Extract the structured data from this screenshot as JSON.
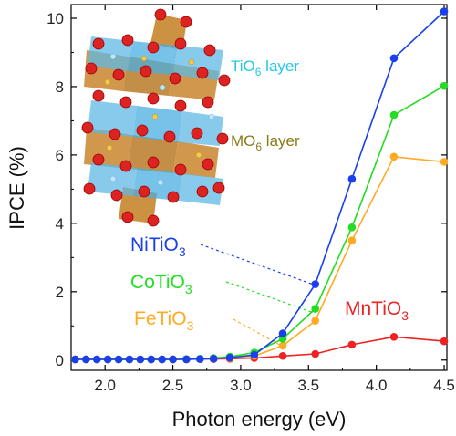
{
  "chart_data": {
    "type": "line",
    "xlabel": "Photon energy (eV)",
    "ylabel": "IPCE (%)",
    "xlim": [
      1.75,
      4.52
    ],
    "ylim": [
      -0.3,
      10.4
    ],
    "x_ticks": [
      "2.0",
      "2.5",
      "3.0",
      "3.5",
      "4.0",
      "4.5"
    ],
    "y_ticks": [
      "0",
      "2",
      "4",
      "6",
      "8",
      "10"
    ],
    "grid": false,
    "series": [
      {
        "name_main": "MnTiO",
        "name_sub": "3",
        "color": "#ee2222",
        "x": [
          1.78,
          1.86,
          1.94,
          2.02,
          2.1,
          2.18,
          2.26,
          2.34,
          2.42,
          2.5,
          2.6,
          2.7,
          2.8,
          2.92,
          3.1,
          3.31,
          3.55,
          3.82,
          4.13,
          4.5
        ],
        "y": [
          0.02,
          0.02,
          0.02,
          0.02,
          0.02,
          0.02,
          0.02,
          0.02,
          0.02,
          0.02,
          0.02,
          0.03,
          0.03,
          0.04,
          0.06,
          0.12,
          0.18,
          0.45,
          0.68,
          0.55
        ]
      },
      {
        "name_main": "FeTiO",
        "name_sub": "3",
        "color": "#ffaa22",
        "x": [
          1.78,
          1.86,
          1.94,
          2.02,
          2.1,
          2.18,
          2.26,
          2.34,
          2.42,
          2.5,
          2.6,
          2.7,
          2.8,
          2.92,
          3.1,
          3.31,
          3.55,
          3.82,
          4.13,
          4.5
        ],
        "y": [
          0.02,
          0.02,
          0.02,
          0.02,
          0.02,
          0.02,
          0.02,
          0.02,
          0.02,
          0.02,
          0.03,
          0.03,
          0.04,
          0.06,
          0.12,
          0.42,
          1.15,
          3.5,
          5.95,
          5.8
        ]
      },
      {
        "name_main": "CoTiO",
        "name_sub": "3",
        "color": "#22dd22",
        "x": [
          1.78,
          1.86,
          1.94,
          2.02,
          2.1,
          2.18,
          2.26,
          2.34,
          2.42,
          2.5,
          2.6,
          2.7,
          2.8,
          2.92,
          3.1,
          3.31,
          3.55,
          3.82,
          4.13,
          4.5
        ],
        "y": [
          0.02,
          0.02,
          0.02,
          0.02,
          0.02,
          0.02,
          0.02,
          0.02,
          0.02,
          0.02,
          0.03,
          0.04,
          0.06,
          0.1,
          0.22,
          0.62,
          1.5,
          3.88,
          7.17,
          8.02
        ]
      },
      {
        "name_main": "NiTiO",
        "name_sub": "3",
        "color": "#1a3fee",
        "x": [
          1.78,
          1.86,
          1.94,
          2.02,
          2.1,
          2.18,
          2.26,
          2.34,
          2.42,
          2.5,
          2.6,
          2.7,
          2.8,
          2.92,
          3.1,
          3.31,
          3.55,
          3.82,
          4.13,
          4.5
        ],
        "y": [
          0.02,
          0.02,
          0.02,
          0.02,
          0.02,
          0.02,
          0.02,
          0.02,
          0.02,
          0.02,
          0.02,
          0.03,
          0.04,
          0.07,
          0.15,
          0.78,
          2.22,
          5.3,
          8.83,
          10.2
        ]
      }
    ],
    "annotations": {
      "ti_layer": {
        "main": "TiO",
        "sub": "6",
        "rest": " layer",
        "color": "#22c8e6"
      },
      "m_layer": {
        "main": "MO",
        "sub": "6",
        "rest": " layer",
        "color": "#8a7a1a"
      }
    }
  }
}
